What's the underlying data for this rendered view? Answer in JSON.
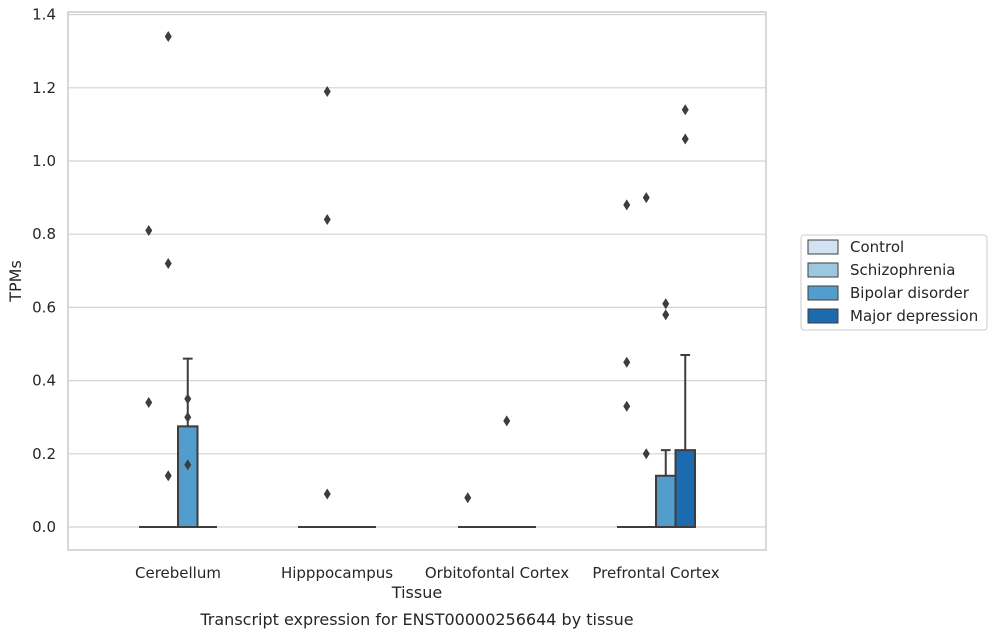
{
  "chart_data": {
    "type": "box",
    "title": "",
    "caption": "Transcript expression for ENST00000256644 by tissue",
    "xlabel": "Tissue",
    "ylabel": "TPMs",
    "ylim": [
      -0.06,
      1.41
    ],
    "yticks": [
      "0.0",
      "0.2",
      "0.4",
      "0.6",
      "0.8",
      "1.0",
      "1.2",
      "1.4"
    ],
    "ytick_values": [
      0,
      0.2,
      0.4,
      0.6,
      0.8,
      1.0,
      1.2,
      1.4
    ],
    "grid": true,
    "legend_position": "right",
    "categories": [
      "Cerebellum",
      "Hipppocampus",
      "Orbitofontal Cortex",
      "Prefrontal Cortex"
    ],
    "series": [
      {
        "name": "Control",
        "color": "#d1e2f2",
        "boxes": [
          {
            "q1": 0,
            "median": 0,
            "q3": 0,
            "whisker_low": 0,
            "whisker_high": 0,
            "outliers": [
              0.34,
              0.81
            ]
          },
          {
            "q1": 0,
            "median": 0,
            "q3": 0,
            "whisker_low": 0,
            "whisker_high": 0,
            "outliers": []
          },
          {
            "q1": 0,
            "median": 0,
            "q3": 0,
            "whisker_low": 0,
            "whisker_high": 0,
            "outliers": [
              0.08
            ]
          },
          {
            "q1": 0,
            "median": 0,
            "q3": 0,
            "whisker_low": 0,
            "whisker_high": 0,
            "outliers": [
              0.33,
              0.45,
              0.88
            ]
          }
        ]
      },
      {
        "name": "Schizophrenia",
        "color": "#9ac8e0",
        "boxes": [
          {
            "q1": 0,
            "median": 0,
            "q3": 0,
            "whisker_low": 0,
            "whisker_high": 0,
            "outliers": [
              0.14,
              0.72,
              1.34
            ]
          },
          {
            "q1": 0,
            "median": 0,
            "q3": 0,
            "whisker_low": 0,
            "whisker_high": 0,
            "outliers": [
              0.09,
              0.84,
              1.19
            ]
          },
          {
            "q1": 0,
            "median": 0,
            "q3": 0,
            "whisker_low": 0,
            "whisker_high": 0,
            "outliers": []
          },
          {
            "q1": 0,
            "median": 0,
            "q3": 0,
            "whisker_low": 0,
            "whisker_high": 0,
            "outliers": [
              0.2,
              0.9
            ]
          }
        ]
      },
      {
        "name": "Bipolar disorder",
        "color": "#529dcc",
        "boxes": [
          {
            "q1": 0,
            "median": 0,
            "q3": 0.275,
            "whisker_low": 0,
            "whisker_high": 0.46,
            "outliers": [
              0.17,
              0.3,
              0.35
            ]
          },
          {
            "q1": 0,
            "median": 0,
            "q3": 0,
            "whisker_low": 0,
            "whisker_high": 0,
            "outliers": []
          },
          {
            "q1": 0,
            "median": 0,
            "q3": 0,
            "whisker_low": 0,
            "whisker_high": 0,
            "outliers": [
              0.29
            ]
          },
          {
            "q1": 0,
            "median": 0,
            "q3": 0.14,
            "whisker_low": 0,
            "whisker_high": 0.21,
            "outliers": [
              0.58,
              0.61
            ]
          }
        ]
      },
      {
        "name": "Major depression",
        "color": "#1c6aaf",
        "boxes": [
          {
            "q1": 0,
            "median": 0,
            "q3": 0,
            "whisker_low": 0,
            "whisker_high": 0,
            "outliers": []
          },
          {
            "q1": 0,
            "median": 0,
            "q3": 0,
            "whisker_low": 0,
            "whisker_high": 0,
            "outliers": []
          },
          {
            "q1": 0,
            "median": 0,
            "q3": 0,
            "whisker_low": 0,
            "whisker_high": 0,
            "outliers": []
          },
          {
            "q1": 0,
            "median": 0,
            "q3": 0.21,
            "whisker_low": 0,
            "whisker_high": 0.47,
            "outliers": [
              1.06,
              1.14
            ]
          }
        ]
      }
    ]
  }
}
